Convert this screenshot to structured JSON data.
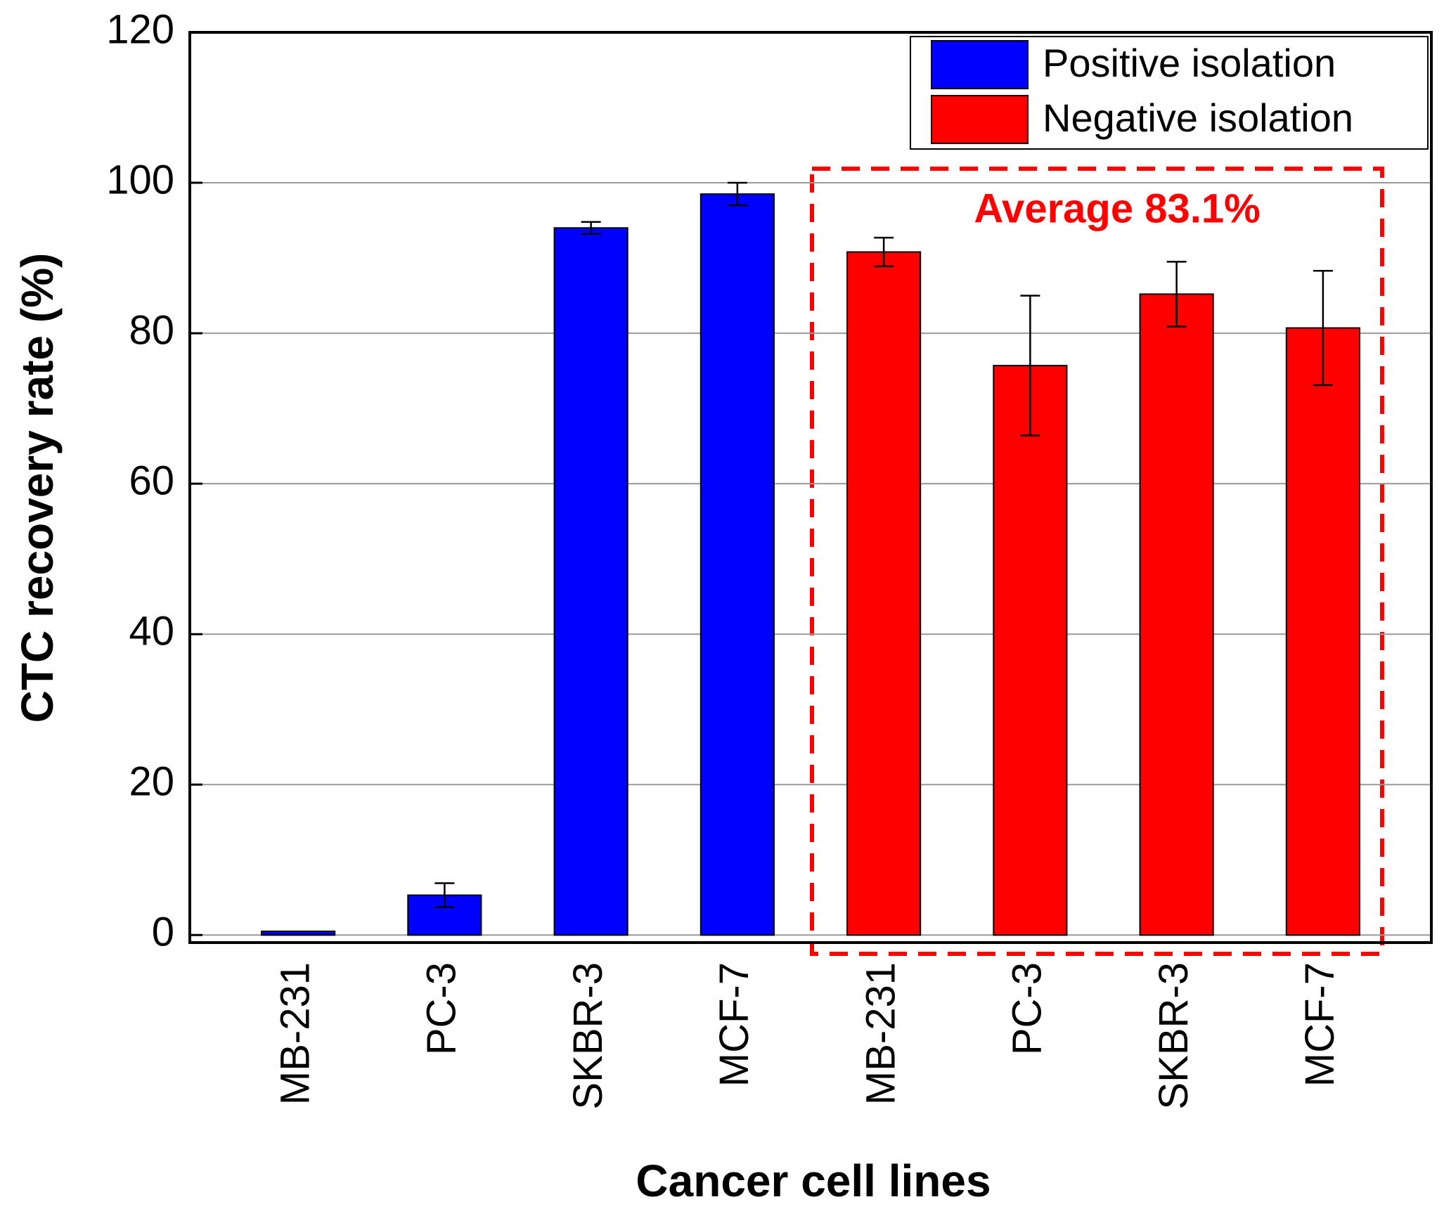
{
  "chart_data": {
    "type": "bar",
    "y_label": "CTC recovery rate (%)",
    "x_label": "Cancer cell lines",
    "annotation": "Average 83.1%",
    "categories": [
      "MB-231",
      "PC-3",
      "SKBR-3",
      "MCF-7",
      "MB-231",
      "PC-3",
      "SKBR-3",
      "MCF-7"
    ],
    "series": [
      {
        "name": "Positive isolation",
        "color": "#0000ff",
        "values": [
          0.5,
          5.3,
          94,
          98.5,
          null,
          null,
          null,
          null
        ],
        "errors": [
          0,
          1.6,
          0.8,
          1.5,
          null,
          null,
          null,
          null
        ]
      },
      {
        "name": "Negative isolation",
        "color": "#ff0000",
        "values": [
          null,
          null,
          null,
          null,
          90.8,
          75.7,
          85.2,
          80.7
        ],
        "errors": [
          null,
          null,
          null,
          null,
          1.9,
          9.3,
          4.3,
          7.6
        ]
      }
    ],
    "ylim": [
      -1,
      120
    ],
    "yticks": [
      0,
      20,
      40,
      60,
      80,
      100,
      120
    ],
    "grid": true,
    "legend": "upper right"
  }
}
